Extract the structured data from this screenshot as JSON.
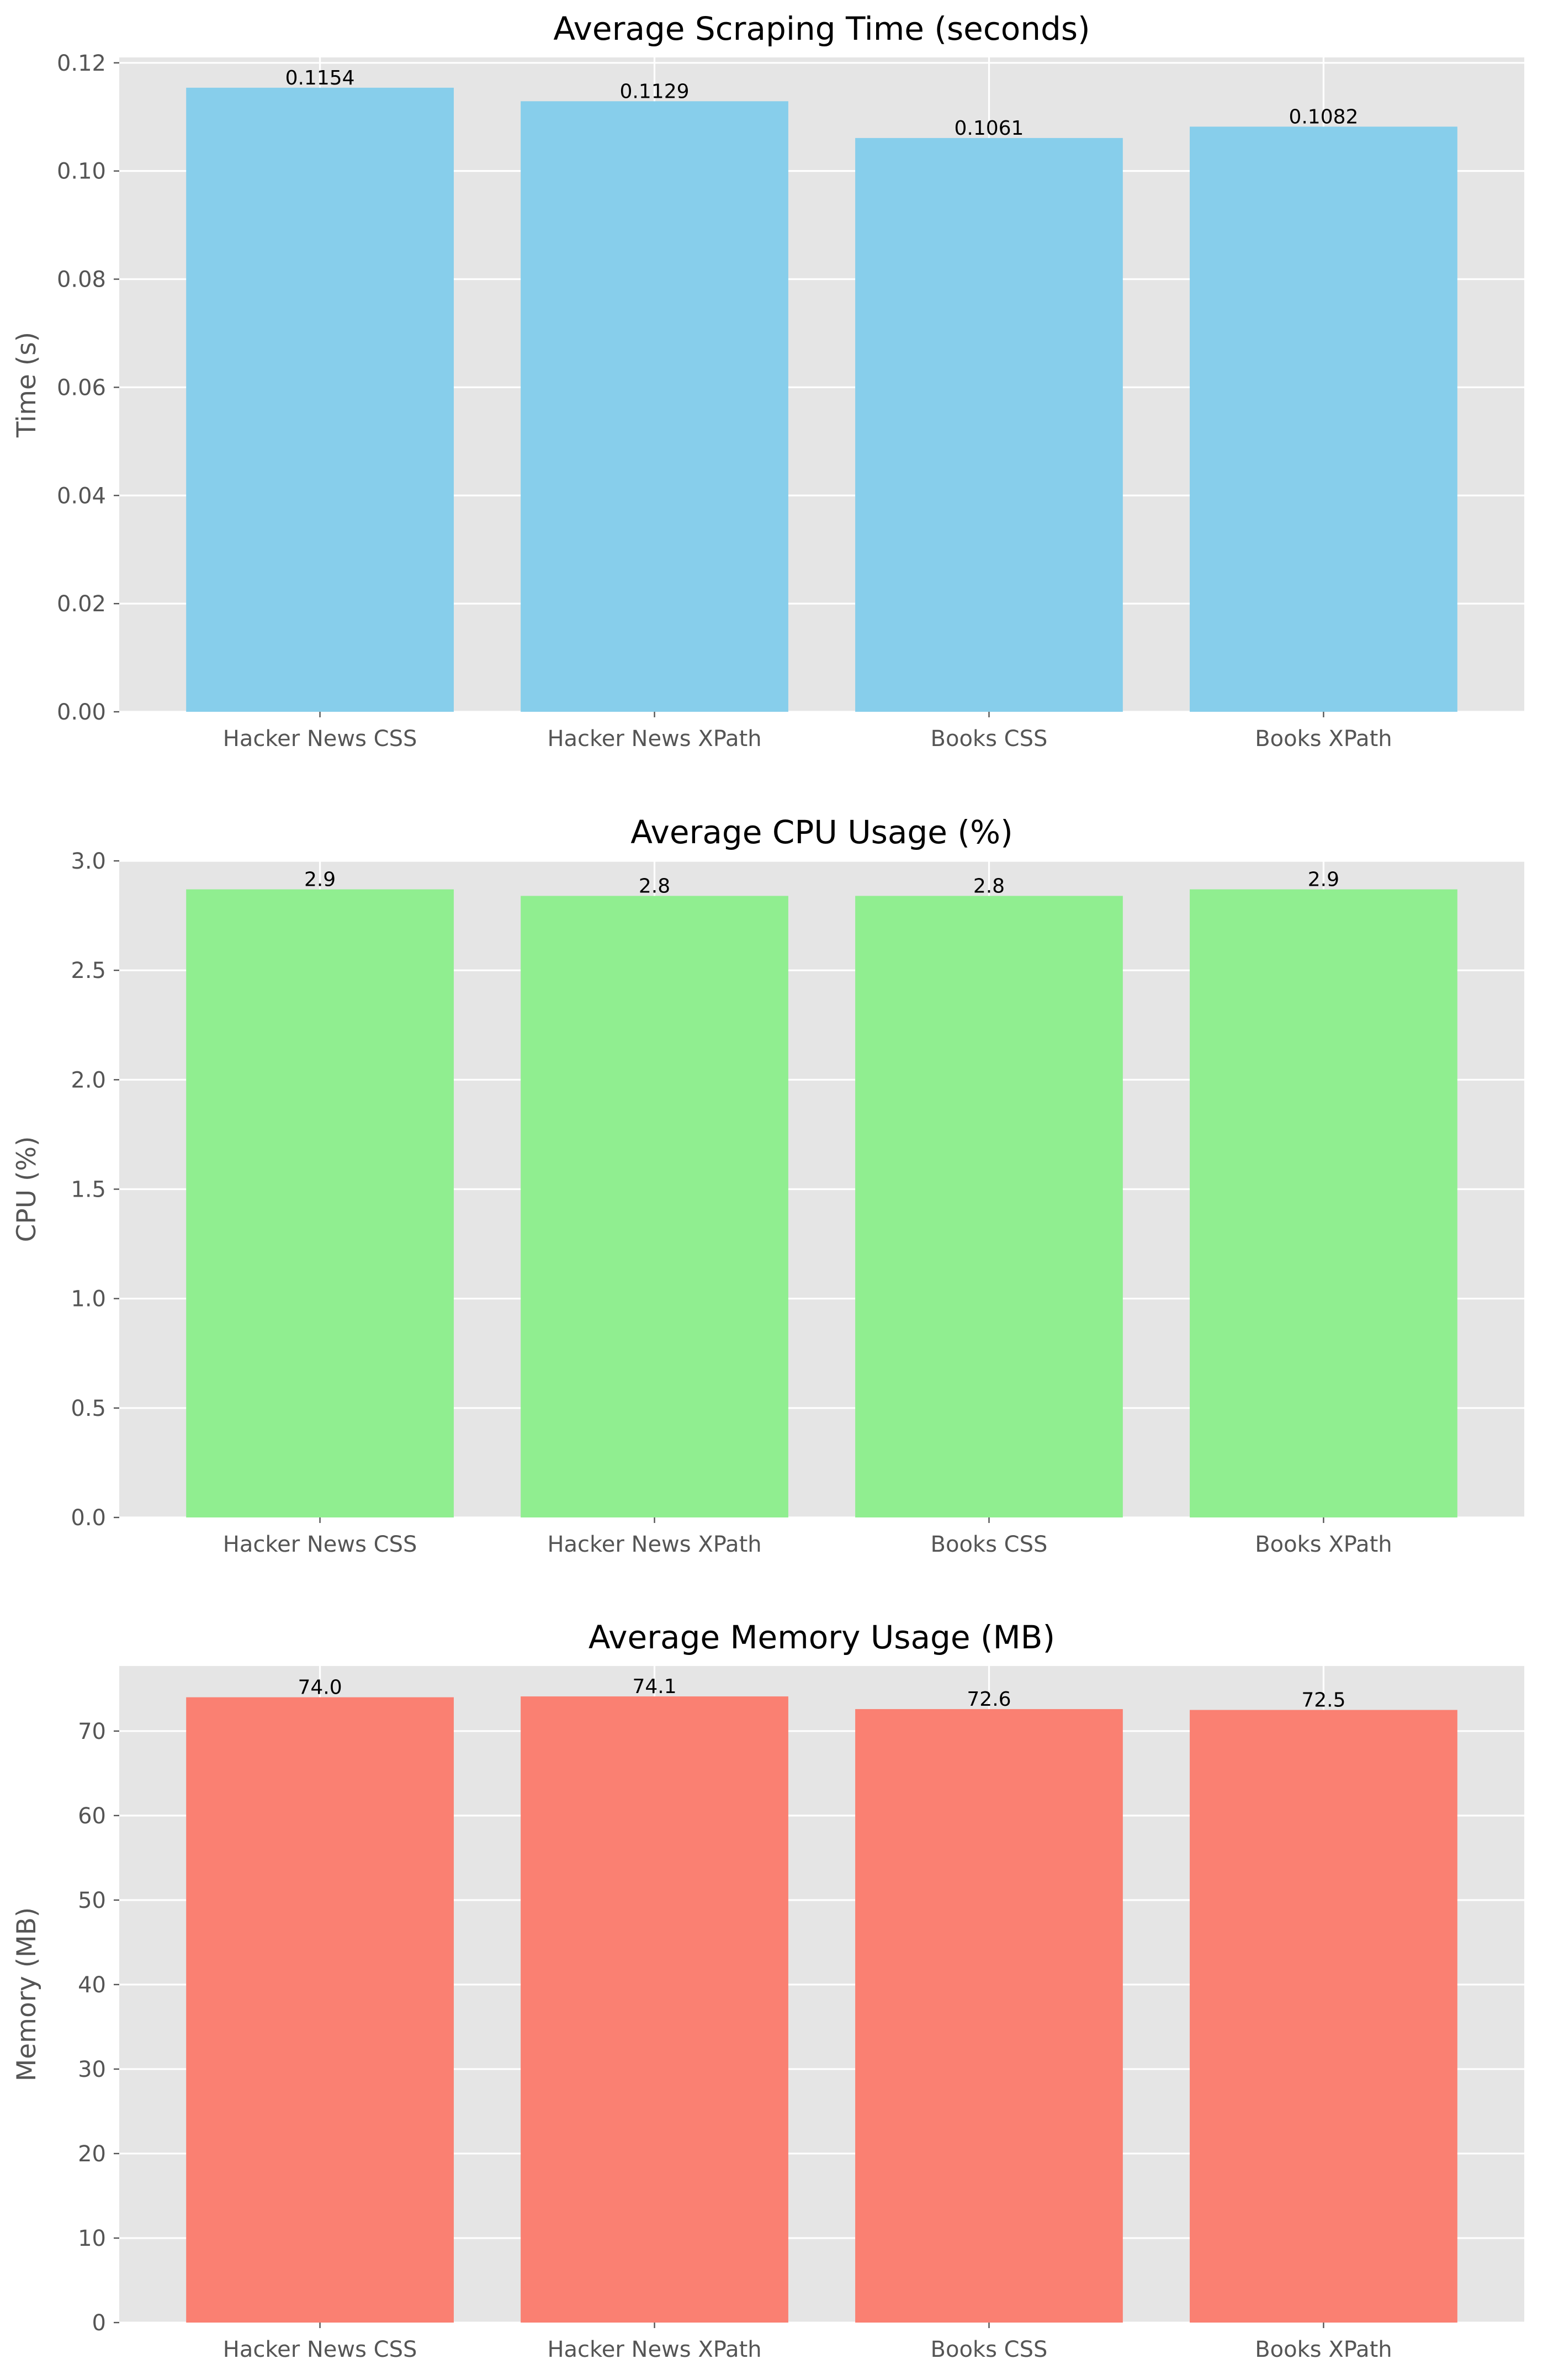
{
  "chart_data": [
    {
      "type": "bar",
      "title": "Average Scraping Time (seconds)",
      "xlabel": "",
      "ylabel": "Time (s)",
      "categories": [
        "Hacker News CSS",
        "Hacker News XPath",
        "Books CSS",
        "Books XPath"
      ],
      "values": [
        0.1154,
        0.1129,
        0.1061,
        0.1082
      ],
      "value_labels": [
        "0.1154",
        "0.1129",
        "0.1061",
        "0.1082"
      ],
      "ylim": [
        0,
        0.121
      ],
      "yticks": [
        0,
        0.02,
        0.04,
        0.06,
        0.08,
        0.1,
        0.12
      ],
      "ytick_labels": [
        "0.00",
        "0.02",
        "0.04",
        "0.06",
        "0.08",
        "0.10",
        "0.12"
      ],
      "grid": true,
      "legend": "none",
      "bar_color": "#87ceeb"
    },
    {
      "type": "bar",
      "title": "Average CPU Usage (%)",
      "xlabel": "",
      "ylabel": "CPU (%)",
      "categories": [
        "Hacker News CSS",
        "Hacker News XPath",
        "Books CSS",
        "Books XPath"
      ],
      "values": [
        2.87,
        2.84,
        2.84,
        2.87
      ],
      "value_labels": [
        "2.9",
        "2.8",
        "2.8",
        "2.9"
      ],
      "ylim": [
        0,
        3.0
      ],
      "yticks": [
        0,
        0.5,
        1.0,
        1.5,
        2.0,
        2.5,
        3.0
      ],
      "ytick_labels": [
        "0.0",
        "0.5",
        "1.0",
        "1.5",
        "2.0",
        "2.5",
        "3.0"
      ],
      "grid": true,
      "legend": "none",
      "bar_color": "#90ee90"
    },
    {
      "type": "bar",
      "title": "Average Memory Usage (MB)",
      "xlabel": "",
      "ylabel": "Memory (MB)",
      "categories": [
        "Hacker News CSS",
        "Hacker News XPath",
        "Books CSS",
        "Books XPath"
      ],
      "values": [
        74.0,
        74.1,
        72.6,
        72.5
      ],
      "value_labels": [
        "74.0",
        "74.1",
        "72.6",
        "72.5"
      ],
      "ylim": [
        0,
        77.7
      ],
      "yticks": [
        0,
        10,
        20,
        30,
        40,
        50,
        60,
        70
      ],
      "ytick_labels": [
        "0",
        "10",
        "20",
        "30",
        "40",
        "50",
        "60",
        "70"
      ],
      "grid": true,
      "legend": "none",
      "bar_color": "#fa8072"
    }
  ],
  "colors": {
    "axes_background": "#e5e5e5",
    "grid": "#ffffff",
    "tick_text": "#555555",
    "title_text": "#000000",
    "value_text": "#000000"
  }
}
